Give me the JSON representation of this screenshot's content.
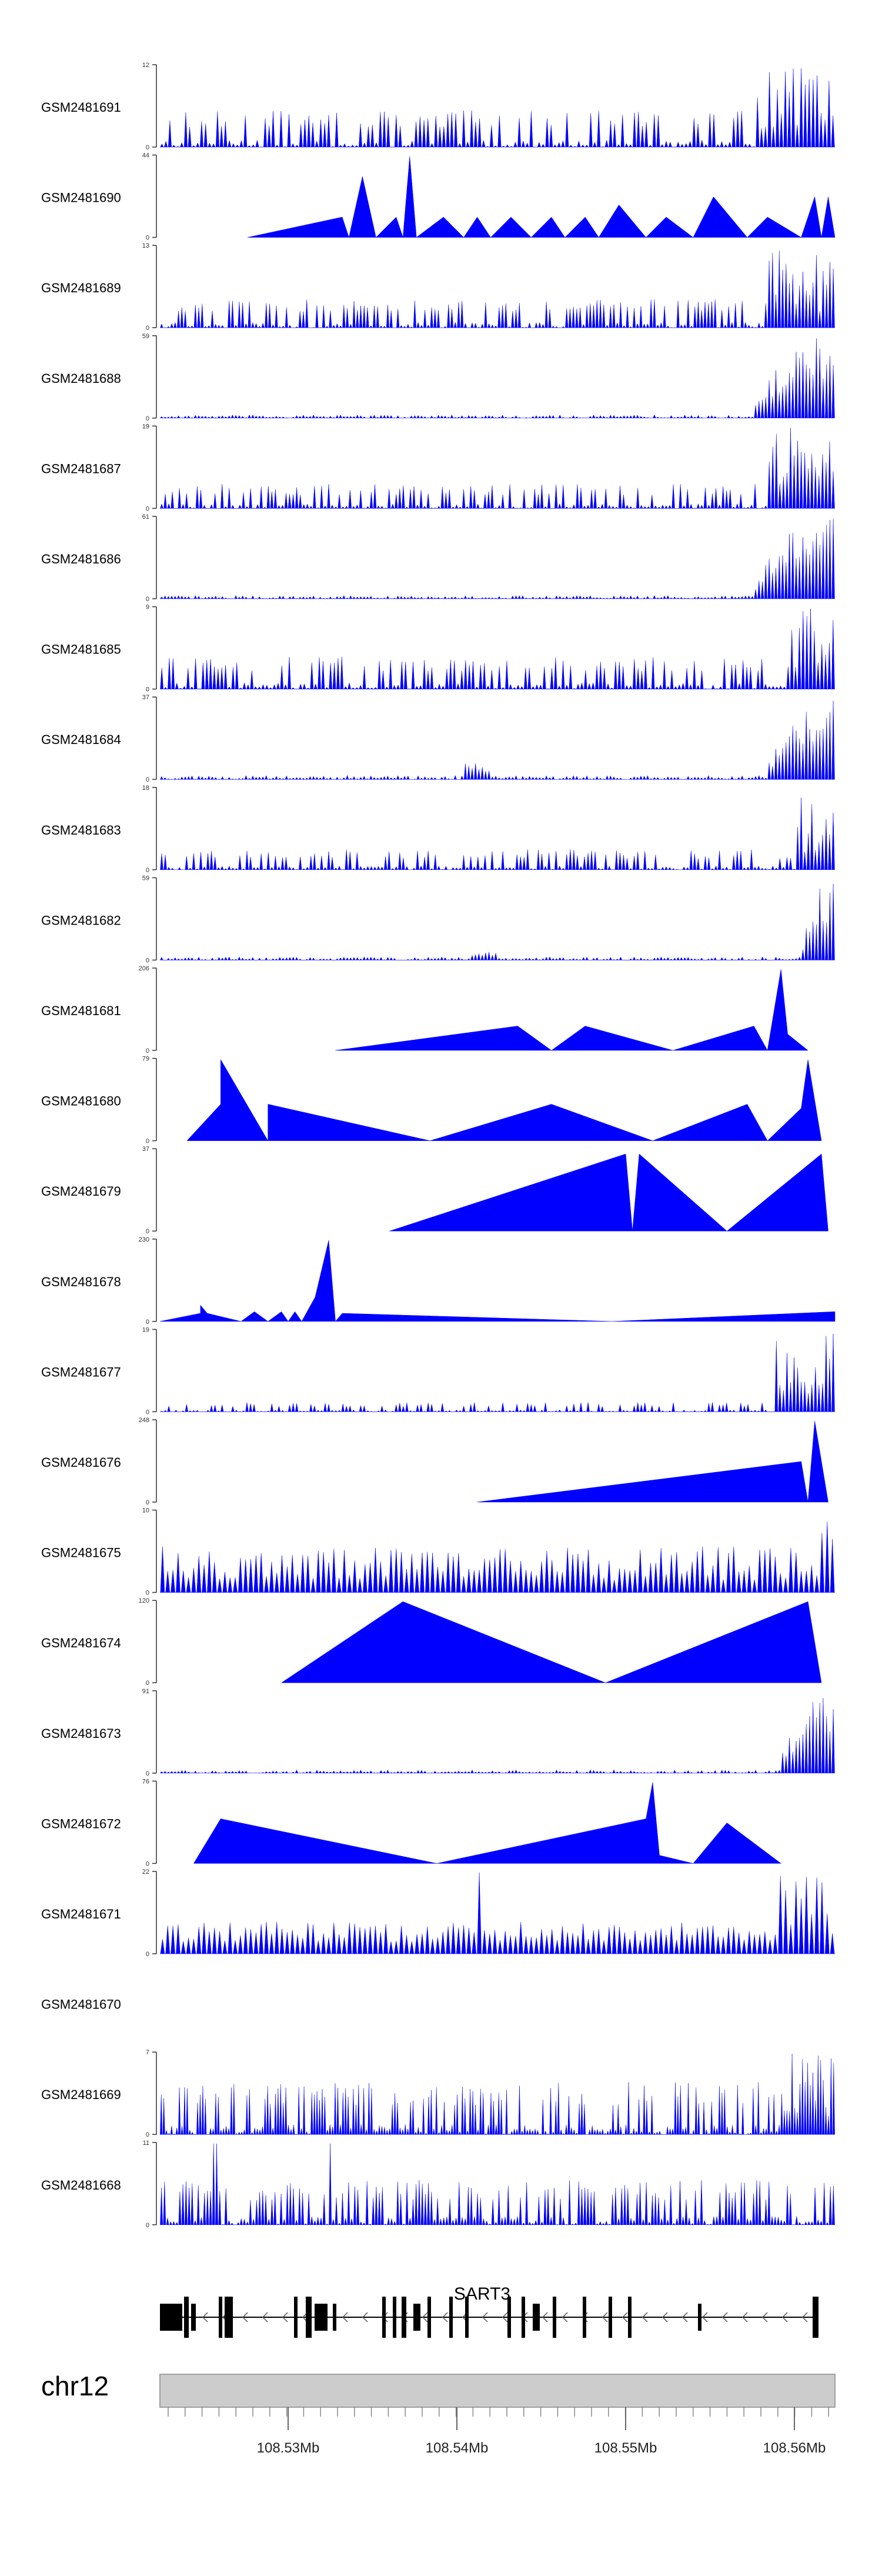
{
  "chart_data": {
    "type": "area",
    "title": "",
    "fill_color": "#0000ff",
    "gene_color": "#000000",
    "ideogram_color": "#cccccc",
    "chromosome_label": "chr12",
    "gene_label": "SART3",
    "axis_ticks": [
      "108.53Mb",
      "108.54Mb",
      "108.55Mb",
      "108.56Mb"
    ],
    "tracks": [
      {
        "name": "GSM2481691",
        "ymax": "12",
        "ymin": "0"
      },
      {
        "name": "GSM2481690",
        "ymax": "44",
        "ymin": "0"
      },
      {
        "name": "GSM2481689",
        "ymax": "13",
        "ymin": "0"
      },
      {
        "name": "GSM2481688",
        "ymax": "59",
        "ymin": "0"
      },
      {
        "name": "GSM2481687",
        "ymax": "19",
        "ymin": "0"
      },
      {
        "name": "GSM2481686",
        "ymax": "61",
        "ymin": "0"
      },
      {
        "name": "GSM2481685",
        "ymax": "9",
        "ymin": "0"
      },
      {
        "name": "GSM2481684",
        "ymax": "37",
        "ymin": "0"
      },
      {
        "name": "GSM2481683",
        "ymax": "18",
        "ymin": "0"
      },
      {
        "name": "GSM2481682",
        "ymax": "59",
        "ymin": "0"
      },
      {
        "name": "GSM2481681",
        "ymax": "206",
        "ymin": "0"
      },
      {
        "name": "GSM2481680",
        "ymax": "79",
        "ymin": "0"
      },
      {
        "name": "GSM2481679",
        "ymax": "37",
        "ymin": "0"
      },
      {
        "name": "GSM2481678",
        "ymax": "230",
        "ymin": "0"
      },
      {
        "name": "GSM2481677",
        "ymax": "19",
        "ymin": "0"
      },
      {
        "name": "GSM2481676",
        "ymax": "248",
        "ymin": "0"
      },
      {
        "name": "GSM2481675",
        "ymax": "10",
        "ymin": "0"
      },
      {
        "name": "GSM2481674",
        "ymax": "120",
        "ymin": "0"
      },
      {
        "name": "GSM2481673",
        "ymax": "91",
        "ymin": "0"
      },
      {
        "name": "GSM2481672",
        "ymax": "76",
        "ymin": "0"
      },
      {
        "name": "GSM2481671",
        "ymax": "22",
        "ymin": "0"
      },
      {
        "name": "GSM2481670",
        "ymax": "",
        "ymin": ""
      },
      {
        "name": "GSM2481669",
        "ymax": "7",
        "ymin": "0"
      },
      {
        "name": "GSM2481668",
        "ymax": "11",
        "ymin": "0"
      }
    ]
  }
}
